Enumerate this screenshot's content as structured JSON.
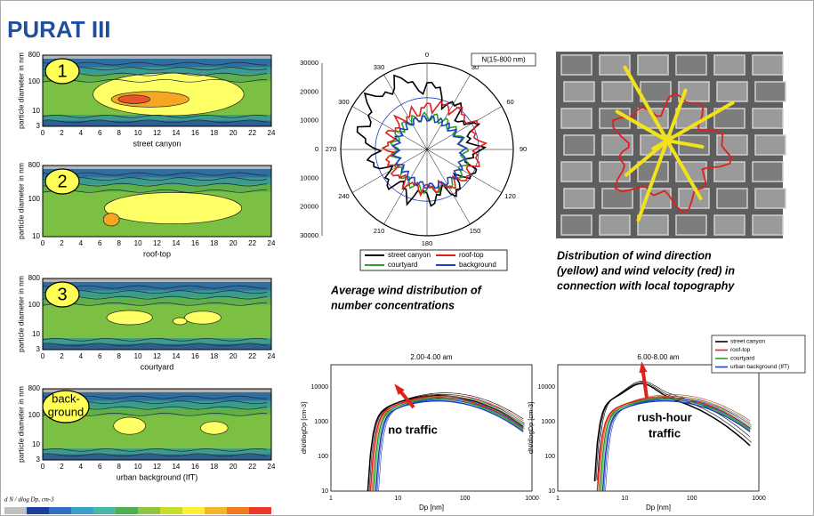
{
  "header": {
    "title": "PURAT III"
  },
  "contour_panels": [
    {
      "badge": [
        "1"
      ],
      "y_label": "particle diameter in nm",
      "y_ticks": [
        "800",
        "100",
        "10",
        "3"
      ],
      "x_ticks": [
        "0",
        "2",
        "4",
        "6",
        "8",
        "10",
        "12",
        "14",
        "16",
        "18",
        "20",
        "22",
        "24"
      ],
      "x_label": "street canyon"
    },
    {
      "badge": [
        "2"
      ],
      "y_label": "particle diameter in nm",
      "y_ticks": [
        "800",
        "100",
        "10"
      ],
      "x_ticks": [
        "0",
        "2",
        "4",
        "6",
        "8",
        "10",
        "12",
        "14",
        "16",
        "18",
        "20",
        "22",
        "24"
      ],
      "x_label": "roof-top"
    },
    {
      "badge": [
        "3"
      ],
      "y_label": "particle diameter in nm",
      "y_ticks": [
        "800",
        "100",
        "10",
        "3"
      ],
      "x_ticks": [
        "0",
        "2",
        "4",
        "6",
        "8",
        "10",
        "12",
        "14",
        "16",
        "18",
        "20",
        "22",
        "24"
      ],
      "x_label": "courtyard"
    },
    {
      "badge": [
        "back-",
        "ground"
      ],
      "y_label": "particle diameter in nm",
      "y_ticks": [
        "800",
        "100",
        "10",
        "3"
      ],
      "x_ticks": [
        "0",
        "2",
        "4",
        "6",
        "8",
        "10",
        "12",
        "14",
        "16",
        "18",
        "20",
        "22",
        "24"
      ],
      "x_label": "urban background (IfT)"
    }
  ],
  "colorbar": {
    "label": "d N / dlog Dp, cm-3"
  },
  "polar": {
    "box_label": "N(15-800 nm)",
    "angles": [
      "0",
      "30",
      "60",
      "90",
      "120",
      "150",
      "180",
      "210",
      "240",
      "270",
      "300",
      "330"
    ],
    "radial_ticks": [
      "30000",
      "20000",
      "10000",
      "0",
      "10000",
      "20000",
      "30000"
    ],
    "legend": [
      {
        "name": "street canyon",
        "color": "#000000"
      },
      {
        "name": "courtyard",
        "color": "#2ca02c"
      },
      {
        "name": "roof-top",
        "color": "#e0201b"
      },
      {
        "name": "background",
        "color": "#1f3fbf"
      }
    ],
    "caption": [
      "Average wind distribution of",
      "number concentrations"
    ]
  },
  "photo": {
    "caption": [
      "Distribution of wind direction",
      "(yellow) and wind velocity (red) in",
      "connection with local topography"
    ]
  },
  "size_charts": [
    {
      "title": "2.00-4.00 am",
      "y_label": "dN/dlogDp [cm-3]",
      "y_ticks": [
        "10000",
        "1000",
        "100",
        "10"
      ],
      "x_ticks": [
        "1",
        "10",
        "100",
        "1000"
      ],
      "x_label": "Dp [nm]",
      "annotation": [
        "no traffic"
      ]
    },
    {
      "title": "6.00-8.00 am",
      "y_label": "dN/dlogDp [cm-3]",
      "y_ticks": [
        "10000",
        "1000",
        "100",
        "10"
      ],
      "x_ticks": [
        "1",
        "10",
        "100",
        "1000"
      ],
      "x_label": "Dp [nm]",
      "annotation": [
        "rush-hour",
        "traffic"
      ],
      "legend": [
        {
          "name": "street canyon",
          "color": "#000000"
        },
        {
          "name": "roof-top",
          "color": "#e0201b"
        },
        {
          "name": "courtyard",
          "color": "#2ca02c"
        },
        {
          "name": "urban background (IfT)",
          "color": "#1f3fbf"
        }
      ]
    }
  ]
}
